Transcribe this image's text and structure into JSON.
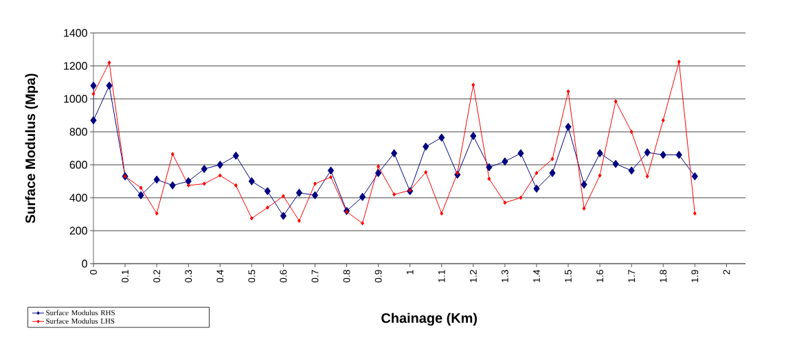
{
  "chart_data": {
    "type": "line",
    "xlabel": "Chainage (Km)",
    "ylabel": "Surface Modulus (Mpa)",
    "xlim": [
      0,
      2.06
    ],
    "ylim": [
      0,
      1400
    ],
    "xticks": [
      0,
      0.1,
      0.2,
      0.3,
      0.4,
      0.5,
      0.6,
      0.7,
      0.8,
      0.9,
      1,
      1.1,
      1.2,
      1.3,
      1.4,
      1.5,
      1.6,
      1.7,
      1.8,
      1.9,
      2
    ],
    "yticks": [
      0,
      200,
      400,
      600,
      800,
      1000,
      1200,
      1400
    ],
    "grid": "y",
    "legend": "bottom left",
    "marker": "diamond",
    "line_style": "solid",
    "series": [
      {
        "name": "Surface Modulus RHS",
        "color": "#000080",
        "x": [
          0,
          0,
          0.05,
          0.1,
          0.15,
          0.2,
          0.25,
          0.3,
          0.35,
          0.4,
          0.45,
          0.5,
          0.55,
          0.6,
          0.65,
          0.7,
          0.75,
          0.8,
          0.85,
          0.9,
          0.95,
          1,
          1.05,
          1.1,
          1.15,
          1.2,
          1.25,
          1.3,
          1.35,
          1.4,
          1.45,
          1.5,
          1.55,
          1.6,
          1.65,
          1.7,
          1.75,
          1.8,
          1.85,
          1.9
        ],
        "values": [
          1080,
          870,
          1080,
          530,
          415,
          510,
          475,
          500,
          575,
          600,
          655,
          500,
          440,
          290,
          430,
          415,
          565,
          320,
          405,
          550,
          670,
          440,
          710,
          765,
          540,
          775,
          585,
          620,
          670,
          455,
          550,
          830,
          480,
          670,
          605,
          565,
          675,
          660,
          660,
          530
        ]
      },
      {
        "name": "Surface Modulus LHS",
        "color": "#ff0000",
        "x": [
          0,
          0.05,
          0.1,
          0.15,
          0.2,
          0.25,
          0.3,
          0.35,
          0.4,
          0.45,
          0.5,
          0.55,
          0.6,
          0.65,
          0.7,
          0.75,
          0.8,
          0.85,
          0.9,
          0.95,
          1,
          1.05,
          1.1,
          1.15,
          1.2,
          1.25,
          1.3,
          1.35,
          1.4,
          1.45,
          1.5,
          1.55,
          1.6,
          1.65,
          1.7,
          1.75,
          1.8,
          1.85,
          1.9
        ],
        "values": [
          1030,
          1220,
          530,
          460,
          305,
          665,
          475,
          485,
          535,
          475,
          275,
          340,
          410,
          260,
          485,
          525,
          315,
          245,
          590,
          420,
          445,
          555,
          305,
          550,
          1085,
          515,
          370,
          400,
          550,
          635,
          1045,
          335,
          535,
          985,
          800,
          530,
          870,
          1225,
          305
        ]
      }
    ]
  }
}
